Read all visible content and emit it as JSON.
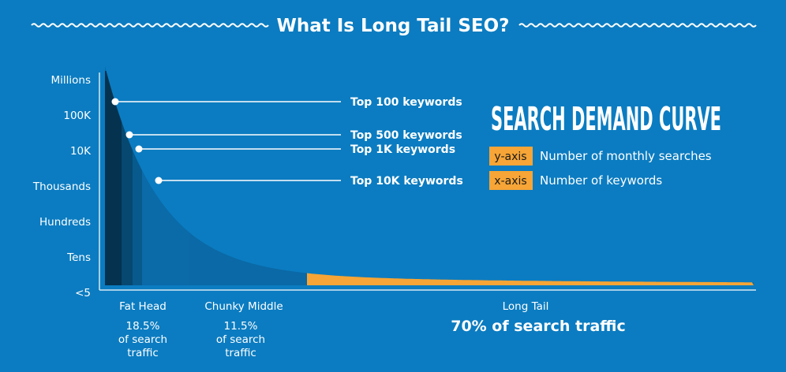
{
  "title": "What Is Long Tail SEO?",
  "colors": {
    "background": "#0b7cc1",
    "curve_fill": "#0a69a6",
    "fat_head_1": "#04324f",
    "fat_head_2": "#064870",
    "fat_head_3": "#085a8c",
    "chunky_middle": "#0b6aa8",
    "long_tail": "#f6a536",
    "axis": "#d6e9f5",
    "legend_tag_bg": "#f6a536"
  },
  "heading": "SEARCH DEMAND CURVE",
  "legend": [
    {
      "tag": "y-axis",
      "description": "Number of monthly searches"
    },
    {
      "tag": "x-axis",
      "description": "Number of keywords"
    }
  ],
  "chart_data": {
    "type": "area",
    "title": "What Is Long Tail SEO?",
    "y_ticks": [
      "Millions",
      "100K",
      "10K",
      "Thousands",
      "Hundreds",
      "Tens",
      "<5"
    ],
    "y_scale": "categorical-log",
    "keyword_markers": [
      {
        "label": "Top 100 keywords",
        "keywords": 100
      },
      {
        "label": "Top 500 keywords",
        "keywords": 500
      },
      {
        "label": "Top 1K keywords",
        "keywords": 1000
      },
      {
        "label": "Top 10K keywords",
        "keywords": 10000
      }
    ],
    "segments": [
      {
        "name": "Fat Head",
        "share_label": "18.5% of search traffic",
        "share": 18.5
      },
      {
        "name": "Chunky Middle",
        "share_label": "11.5% of search traffic",
        "share": 11.5
      },
      {
        "name": "Long Tail",
        "share_label": "70% of search traffic",
        "share": 70
      }
    ],
    "grid": false,
    "legend_position": "right"
  },
  "segment_text": {
    "fat_head": {
      "name": "Fat Head",
      "lines": [
        "18.5%",
        "of search",
        "traffic"
      ]
    },
    "chunky_middle": {
      "name": "Chunky Middle",
      "lines": [
        "11.5%",
        "of search",
        "traffic"
      ]
    },
    "long_tail": {
      "name": "Long Tail",
      "share": "70% of search traffic"
    }
  }
}
